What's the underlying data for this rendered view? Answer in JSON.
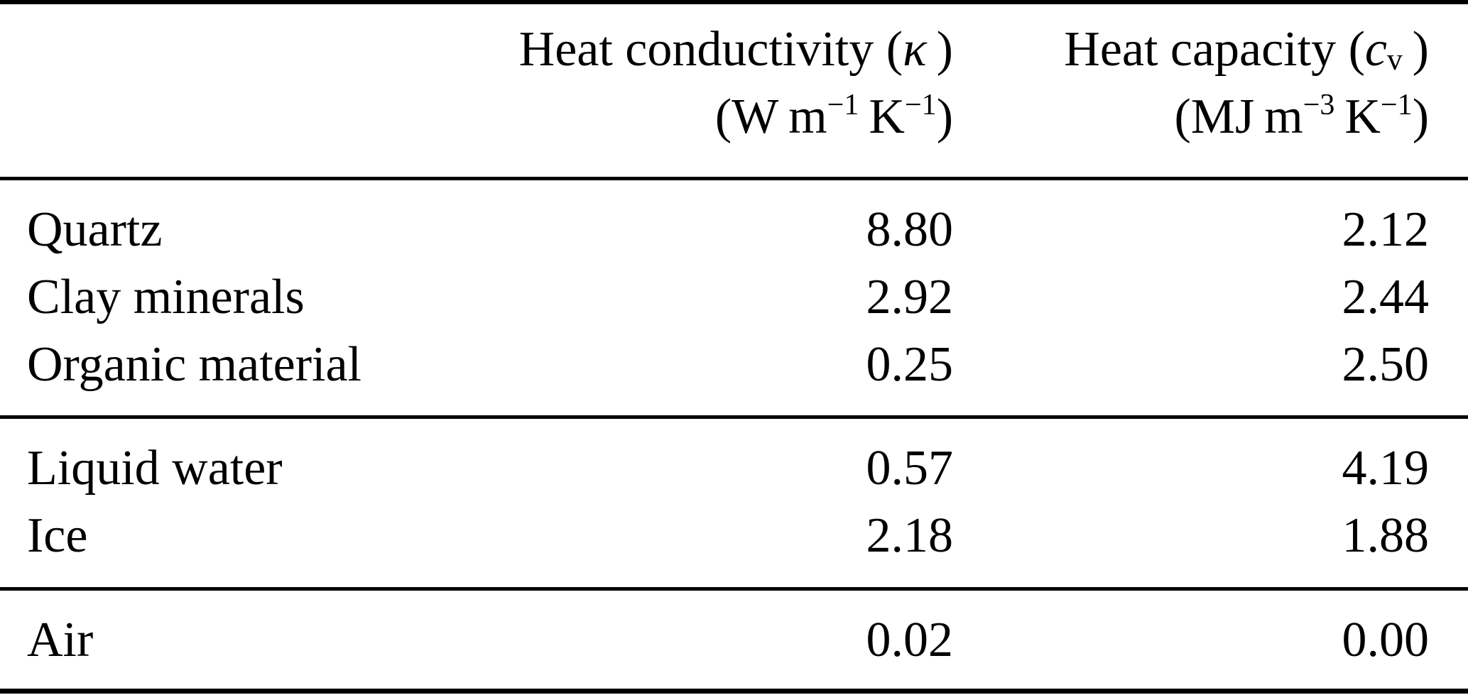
{
  "table": {
    "header": {
      "conductivity": {
        "title_pre": "Heat conductivity (",
        "symbol": "κ",
        "title_post": " )",
        "units_pre": "(W m",
        "units_sup1": "−1",
        "units_mid": " K",
        "units_sup2": "−1",
        "units_post": ")"
      },
      "capacity": {
        "title_pre": "Heat capacity (",
        "symbol": "c",
        "subscript": "v",
        "title_post": " )",
        "units_pre": "(MJ m",
        "units_sup1": "−3",
        "units_mid": " K",
        "units_sup2": "−1",
        "units_post": ")"
      }
    },
    "rows": [
      {
        "label": "Quartz",
        "conductivity": "8.80",
        "capacity": "2.12"
      },
      {
        "label": "Clay minerals",
        "conductivity": "2.92",
        "capacity": "2.44"
      },
      {
        "label": "Organic material",
        "conductivity": "0.25",
        "capacity": "2.50"
      },
      {
        "label": "Liquid water",
        "conductivity": "0.57",
        "capacity": "4.19"
      },
      {
        "label": "Ice",
        "conductivity": "2.18",
        "capacity": "1.88"
      },
      {
        "label": "Air",
        "conductivity": "0.02",
        "capacity": "0.00"
      }
    ],
    "colors": {
      "text": "#000000",
      "background": "#ffffff",
      "rule": "#000000"
    }
  }
}
